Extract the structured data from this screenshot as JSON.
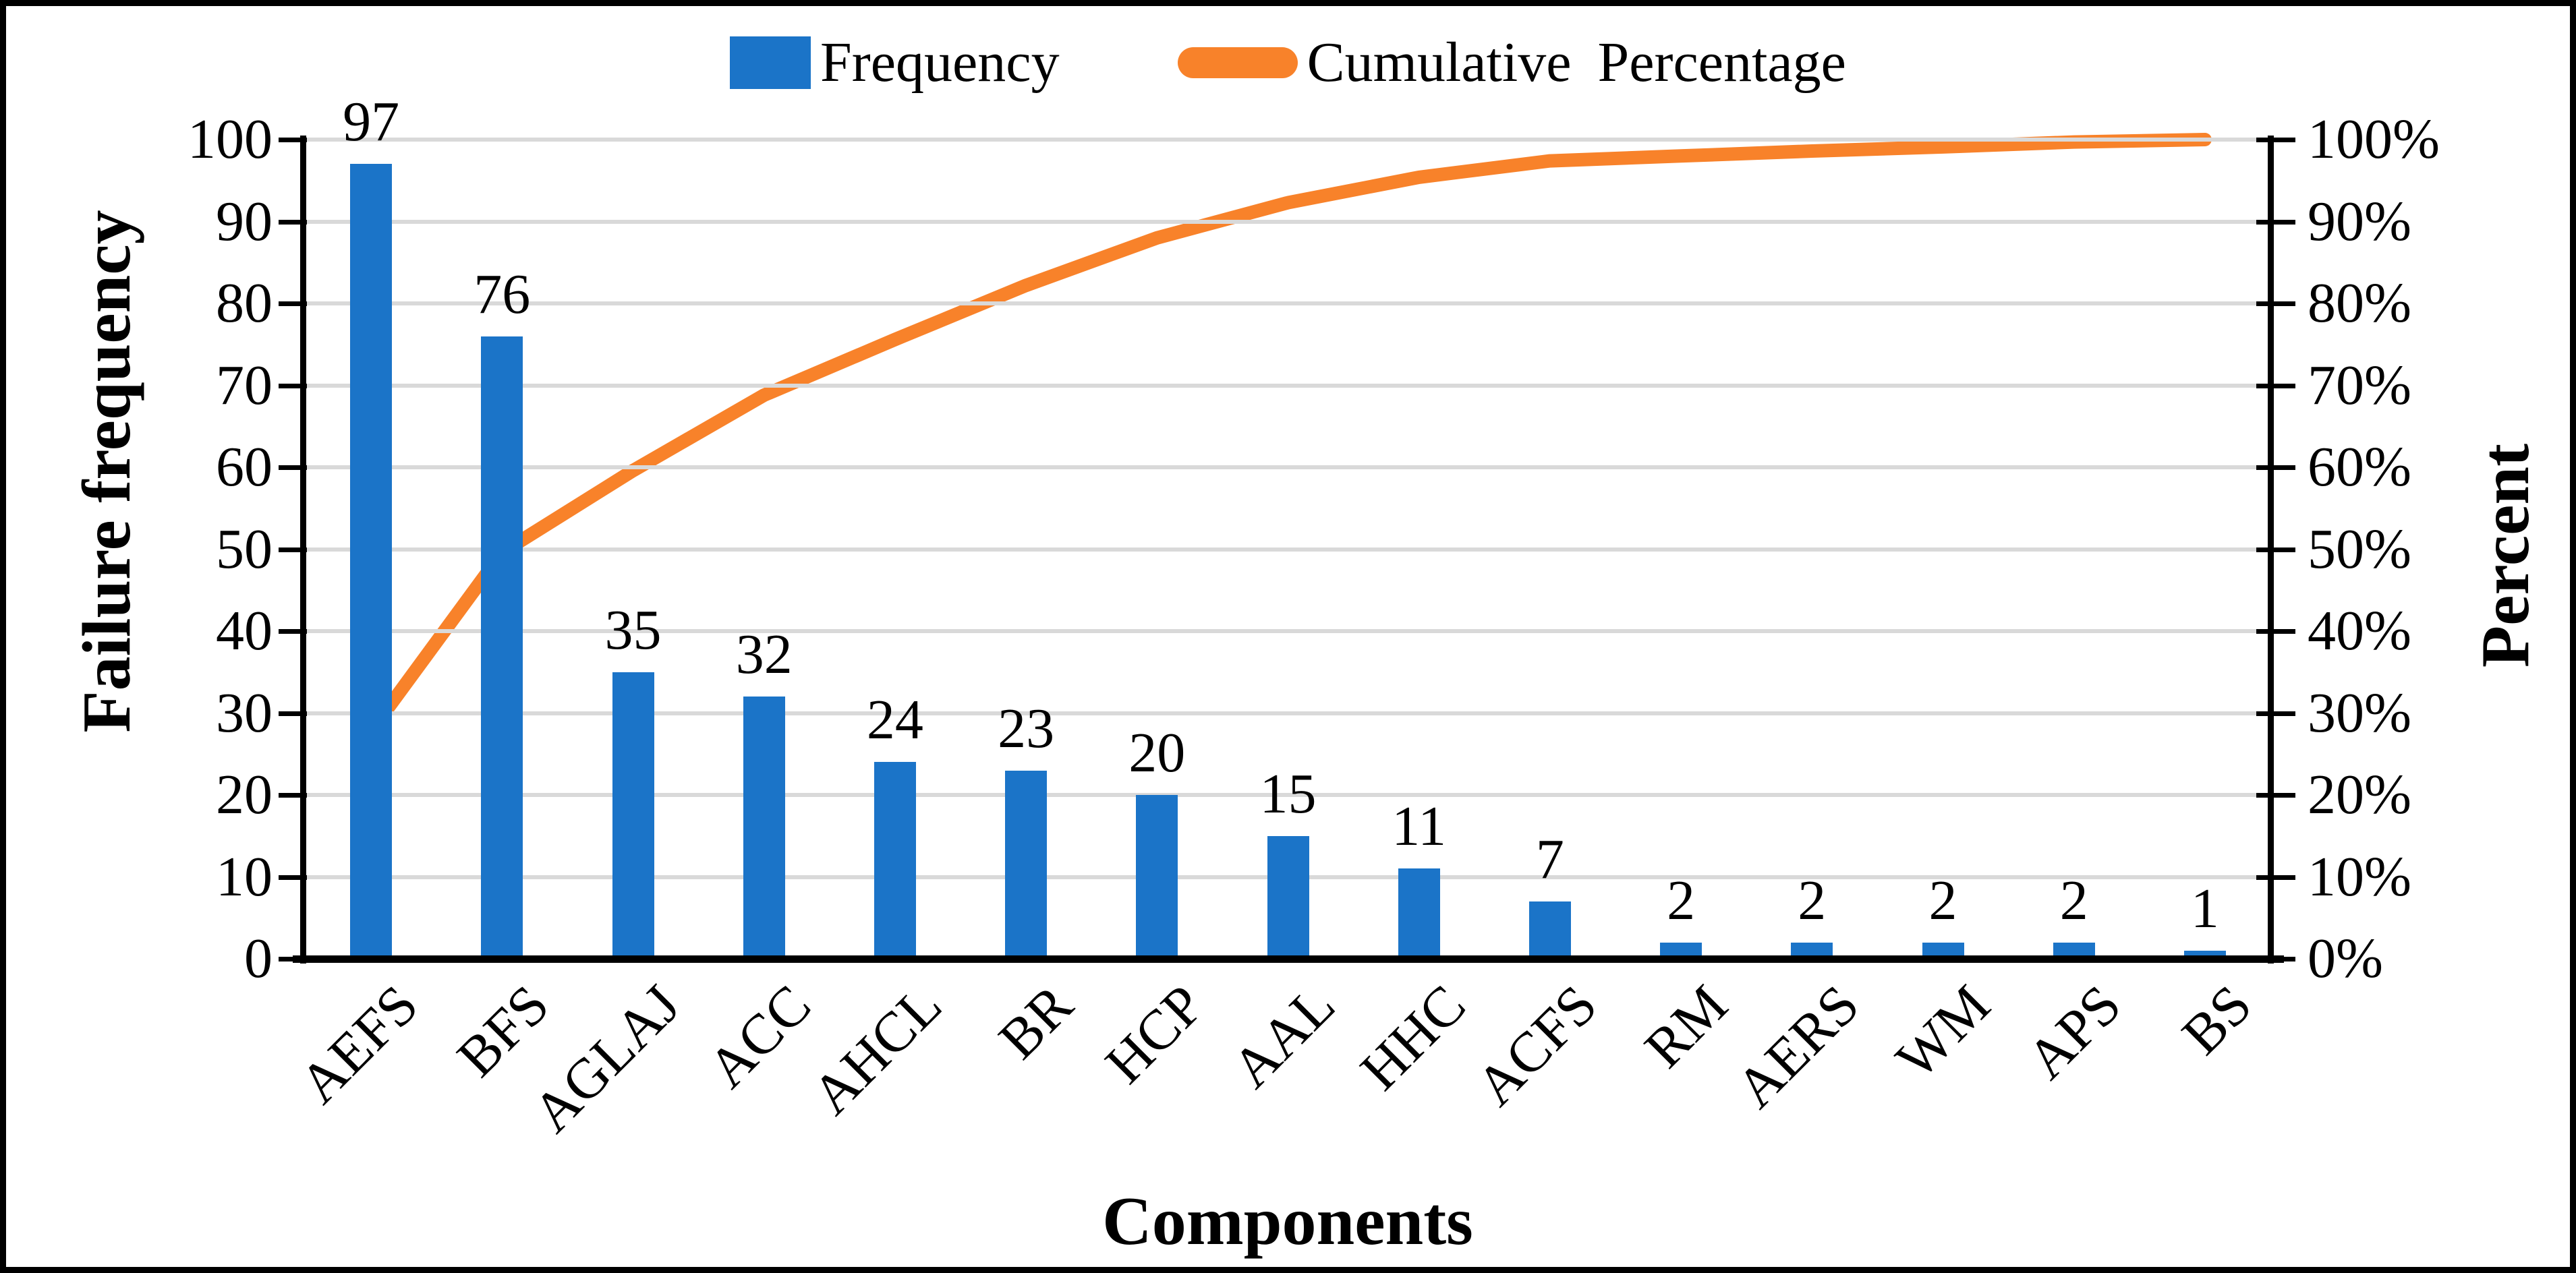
{
  "colors": {
    "bar_blue": "#1B74C8",
    "line_orange": "#F8822A",
    "gridline_gray": "#D9D9D9",
    "axis_black": "#000000",
    "background": "#FFFFFF"
  },
  "chart_data": {
    "type": "pareto (bar + cumulative line)",
    "categories": [
      "AEFS",
      "BFS",
      "AGLAJ",
      "ACC",
      "AHCL",
      "BR",
      "HCP",
      "AAL",
      "HHC",
      "ACFS",
      "RM",
      "AERS",
      "WM",
      "APS",
      "BS"
    ],
    "series": [
      {
        "name": "Frequency",
        "type": "bar",
        "values": [
          97,
          76,
          35,
          32,
          24,
          23,
          20,
          15,
          11,
          7,
          2,
          2,
          2,
          2,
          1
        ],
        "data_labels": [
          "97",
          "76",
          "35",
          "32",
          "24",
          "23",
          "20",
          "15",
          "11",
          "7",
          "2",
          "2",
          "2",
          "2",
          "1"
        ],
        "color": "#1B74C8",
        "axis": "left"
      },
      {
        "name": "Cumulative Percentage",
        "type": "line",
        "values_percent": [
          27.8,
          49.6,
          59.6,
          68.8,
          75.6,
          82.2,
          88.0,
          92.3,
          95.4,
          97.4,
          98.0,
          98.6,
          99.1,
          99.7,
          100.0
        ],
        "color": "#F8822A",
        "axis": "right"
      }
    ],
    "left_axis": {
      "title": "Failure frequency",
      "min": 0,
      "max": 100,
      "step": 10,
      "tick_labels": [
        "0",
        "10",
        "20",
        "30",
        "40",
        "50",
        "60",
        "70",
        "80",
        "90",
        "100"
      ]
    },
    "right_axis": {
      "title": "Percent",
      "min_percent": 0,
      "max_percent": 100,
      "step_percent": 10,
      "tick_labels": [
        "0%",
        "10%",
        "20%",
        "30%",
        "40%",
        "50%",
        "60%",
        "70%",
        "80%",
        "90%",
        "100%"
      ]
    },
    "x_axis": {
      "title": "Components"
    },
    "legend": {
      "position": "top",
      "entries": [
        "Frequency",
        "Cumulative Percentage"
      ]
    },
    "grid": "horizontal gridlines on, light gray",
    "plot_border": "black outer rectangle around figure"
  }
}
